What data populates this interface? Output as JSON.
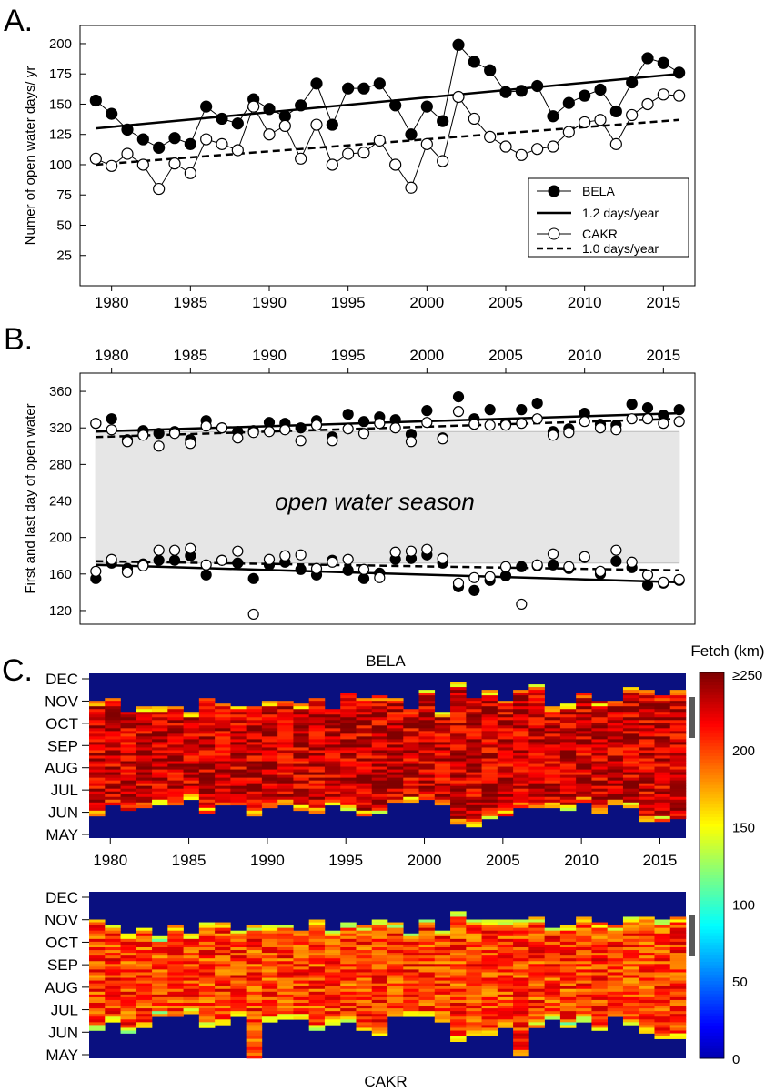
{
  "chart_data": [
    {
      "panel": "A.",
      "type": "line",
      "ylabel": "Numer of open water days/ yr",
      "xlim": [
        1978,
        2017
      ],
      "ylim": [
        0,
        215
      ],
      "xticks": [
        "1980",
        "1985",
        "1990",
        "1995",
        "2000",
        "2005",
        "2010",
        "2015"
      ],
      "yticks": [
        "25",
        "50",
        "75",
        "100",
        "125",
        "150",
        "175",
        "200"
      ],
      "legend_position": "bottom-right",
      "x": [
        1979,
        1980,
        1981,
        1982,
        1983,
        1984,
        1985,
        1986,
        1987,
        1988,
        1989,
        1990,
        1991,
        1992,
        1993,
        1994,
        1995,
        1996,
        1997,
        1998,
        1999,
        2000,
        2001,
        2002,
        2003,
        2004,
        2005,
        2006,
        2007,
        2008,
        2009,
        2010,
        2011,
        2012,
        2013,
        2014,
        2015,
        2016
      ],
      "series": [
        {
          "name": "BELA",
          "marker": "filled",
          "values": [
            153,
            142,
            129,
            121,
            114,
            122,
            117,
            148,
            138,
            134,
            154,
            146,
            140,
            149,
            167,
            133,
            163,
            163,
            167,
            149,
            125,
            148,
            136,
            199,
            185,
            178,
            160,
            161,
            165,
            140,
            151,
            157,
            162,
            144,
            168,
            188,
            184,
            176
          ]
        },
        {
          "name": "CAKR",
          "marker": "open",
          "values": [
            105,
            99,
            109,
            100,
            80,
            101,
            93,
            121,
            117,
            112,
            148,
            125,
            132,
            105,
            133,
            100,
            109,
            110,
            120,
            100,
            81,
            117,
            103,
            156,
            138,
            123,
            115,
            108,
            113,
            115,
            127,
            135,
            137,
            117,
            141,
            150,
            158,
            157
          ]
        }
      ],
      "trendlines": [
        {
          "label": "1.2 days/year",
          "style": "solid",
          "x": [
            1979,
            2016
          ],
          "y": [
            130,
            175
          ]
        },
        {
          "label": "1.0 days/year",
          "style": "dashed",
          "x": [
            1979,
            2016
          ],
          "y": [
            100,
            137
          ]
        }
      ]
    },
    {
      "panel": "B.",
      "type": "scatter",
      "ylabel": "First and last day of open water",
      "xlim": [
        1978,
        2017
      ],
      "ylim": [
        105,
        380
      ],
      "xticks": [
        "1980",
        "1985",
        "1990",
        "1995",
        "2000",
        "2005",
        "2010",
        "2015"
      ],
      "yticks": [
        "120",
        "160",
        "200",
        "240",
        "280",
        "320",
        "360"
      ],
      "annotation": "open water season",
      "x": [
        1979,
        1980,
        1981,
        1982,
        1983,
        1984,
        1985,
        1986,
        1987,
        1988,
        1989,
        1990,
        1991,
        1992,
        1993,
        1994,
        1995,
        1996,
        1997,
        1998,
        1999,
        2000,
        2001,
        2002,
        2003,
        2004,
        2005,
        2006,
        2007,
        2008,
        2009,
        2010,
        2011,
        2012,
        2013,
        2014,
        2015,
        2016
      ],
      "series": [
        {
          "name": "BELA last day",
          "marker": "filled",
          "values": [
            325,
            330,
            307,
            317,
            314,
            316,
            307,
            328,
            320,
            316,
            317,
            326,
            325,
            320,
            328,
            310,
            335,
            327,
            332,
            329,
            313,
            339,
            309,
            354,
            330,
            340,
            325,
            340,
            347,
            316,
            319,
            336,
            324,
            323,
            346,
            342,
            334,
            340
          ]
        },
        {
          "name": "BELA first day",
          "marker": "filled",
          "values": [
            155,
            172,
            166,
            171,
            175,
            175,
            180,
            159,
            175,
            172,
            155,
            170,
            173,
            165,
            159,
            175,
            164,
            155,
            161,
            176,
            177,
            181,
            172,
            146,
            142,
            153,
            158,
            168,
            169,
            170,
            166,
            178,
            160,
            174,
            167,
            148,
            150,
            153
          ]
        },
        {
          "name": "CAKR last day",
          "marker": "open",
          "values": [
            325,
            318,
            305,
            312,
            300,
            314,
            303,
            322,
            320,
            309,
            315,
            316,
            318,
            306,
            323,
            306,
            319,
            314,
            325,
            320,
            305,
            326,
            308,
            338,
            324,
            323,
            323,
            325,
            330,
            312,
            315,
            327,
            320,
            318,
            330,
            330,
            325,
            327
          ]
        },
        {
          "name": "CAKR first day",
          "marker": "open",
          "values": [
            163,
            176,
            162,
            169,
            186,
            186,
            188,
            170,
            175,
            185,
            116,
            176,
            180,
            181,
            166,
            173,
            176,
            165,
            156,
            184,
            185,
            187,
            177,
            150,
            156,
            157,
            168,
            127,
            170,
            182,
            168,
            179,
            163,
            186,
            173,
            159,
            151,
            154
          ]
        }
      ],
      "trendlines": [
        {
          "style": "solid",
          "x": [
            1979,
            2016
          ],
          "y": [
            316,
            336
          ]
        },
        {
          "style": "dashed",
          "x": [
            1979,
            2016
          ],
          "y": [
            310,
            330
          ]
        },
        {
          "style": "dashed",
          "x": [
            1979,
            2016
          ],
          "y": [
            174,
            164
          ]
        },
        {
          "style": "solid",
          "x": [
            1979,
            2016
          ],
          "y": [
            170,
            151
          ]
        }
      ]
    },
    {
      "panel": "C.",
      "type": "heatmap",
      "title": "BELA",
      "x_range": [
        1979,
        2016
      ],
      "month_labels": [
        "DEC",
        "NOV",
        "OCT",
        "SEP",
        "AUG",
        "JUL",
        "JUN",
        "MAY"
      ],
      "xticks": [
        "1980",
        "1985",
        "1990",
        "1995",
        "2000",
        "2005",
        "2010",
        "2015"
      ],
      "colorbar": {
        "title": "Fetch (km)",
        "ticks": [
          "≥250",
          "200",
          "150",
          "100",
          "50",
          "0"
        ],
        "range": [
          0,
          250
        ]
      }
    },
    {
      "panel": "C.",
      "type": "heatmap",
      "title": "CAKR",
      "x_range": [
        1979,
        2016
      ],
      "month_labels": [
        "DEC",
        "NOV",
        "OCT",
        "SEP",
        "AUG",
        "JUL",
        "JUN",
        "MAY"
      ]
    }
  ],
  "labels": {
    "panel_a": "A.",
    "panel_b": "B.",
    "panel_c": "C.",
    "legend_bela": "BELA",
    "legend_bela_trend": "1.2 days/year",
    "legend_cakr": "CAKR",
    "legend_cakr_trend": "1.0 days/year",
    "season": "open water season",
    "heat_top_title": "BELA",
    "heat_bottom_title": "CAKR",
    "colorbar_title": "Fetch (km)"
  },
  "colors": {
    "season_fill": "#e6e6e6",
    "ocean_blue": "#0a1080",
    "fetch_max": "#7f0000",
    "bar_marker": "#595959"
  }
}
